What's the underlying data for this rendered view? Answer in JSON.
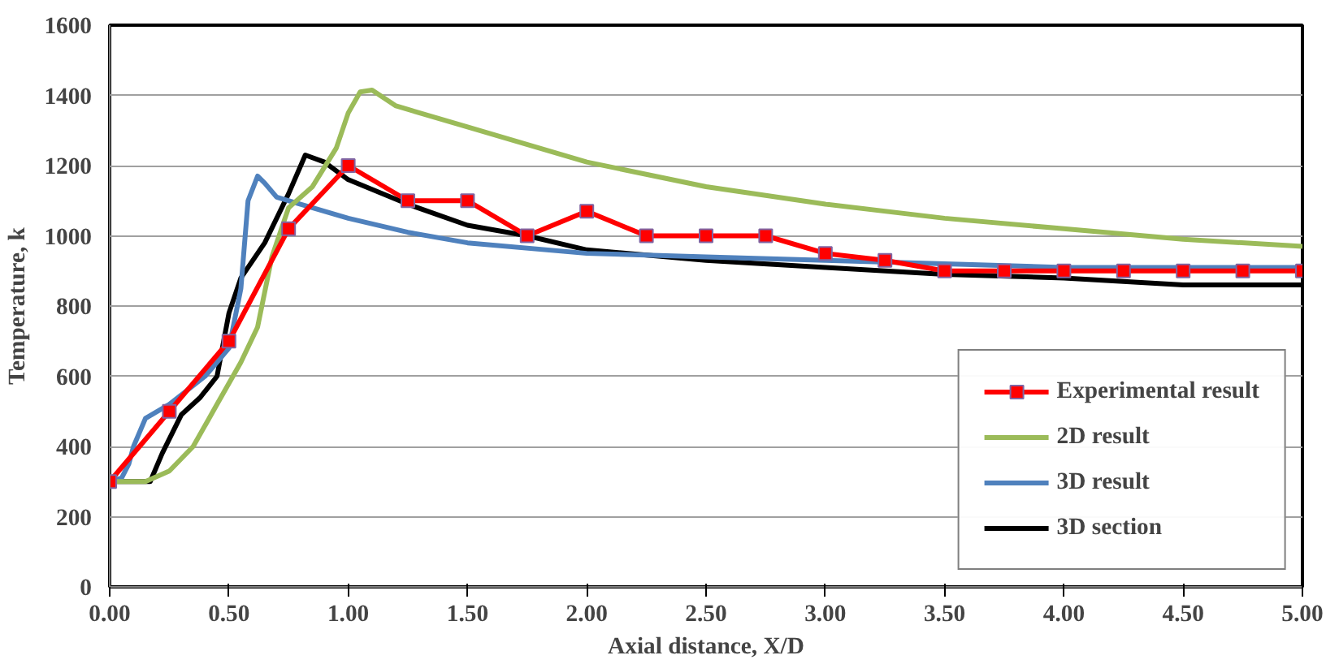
{
  "chart_data": {
    "type": "line",
    "xlabel": "Axial distance, X/D",
    "ylabel": "Temperature, k",
    "xlim": [
      0,
      5
    ],
    "ylim": [
      0,
      1600
    ],
    "xticks": [
      {
        "value": 0,
        "label": "0.00"
      },
      {
        "value": 0.5,
        "label": "0.50"
      },
      {
        "value": 1,
        "label": "1.00"
      },
      {
        "value": 1.5,
        "label": "1.50"
      },
      {
        "value": 2,
        "label": "2.00"
      },
      {
        "value": 2.5,
        "label": "2.50"
      },
      {
        "value": 3,
        "label": "3.00"
      },
      {
        "value": 3.5,
        "label": "3.50"
      },
      {
        "value": 4,
        "label": "4.00"
      },
      {
        "value": 4.5,
        "label": "4.50"
      },
      {
        "value": 5,
        "label": "5.00"
      }
    ],
    "yticks": [
      0,
      200,
      400,
      600,
      800,
      1000,
      1200,
      1400,
      1600
    ],
    "grid": "y",
    "legend": "bottom right",
    "series": [
      {
        "name": "Experimental result",
        "color": "#ff0000",
        "marker": "square",
        "x": [
          0,
          0.25,
          0.5,
          0.75,
          1,
          1.25,
          1.5,
          1.75,
          2,
          2.25,
          2.5,
          2.75,
          3,
          3.25,
          3.5,
          3.75,
          4,
          4.25,
          4.5,
          4.75,
          5
        ],
        "values": [
          300,
          500,
          700,
          1020,
          1200,
          1100,
          1100,
          1000,
          1070,
          1000,
          1000,
          1000,
          950,
          930,
          900,
          900,
          900,
          900,
          900,
          900,
          900
        ]
      },
      {
        "name": "2D result",
        "color": "#9bbb59",
        "marker": "none",
        "x": [
          0,
          0.15,
          0.25,
          0.35,
          0.45,
          0.55,
          0.62,
          0.68,
          0.75,
          0.85,
          0.95,
          1,
          1.05,
          1.1,
          1.2,
          1.5,
          2,
          2.5,
          3,
          3.5,
          4,
          4.5,
          5
        ],
        "values": [
          300,
          300,
          330,
          400,
          520,
          640,
          740,
          940,
          1080,
          1140,
          1250,
          1350,
          1410,
          1415,
          1370,
          1310,
          1210,
          1140,
          1090,
          1050,
          1020,
          990,
          970
        ]
      },
      {
        "name": "3D result",
        "color": "#4f81bd",
        "marker": "none",
        "x": [
          0,
          0.05,
          0.08,
          0.1,
          0.15,
          0.25,
          0.4,
          0.5,
          0.55,
          0.58,
          0.62,
          0.65,
          0.7,
          0.8,
          1,
          1.25,
          1.5,
          2,
          2.5,
          3,
          3.5,
          4,
          4.5,
          5
        ],
        "values": [
          300,
          310,
          350,
          400,
          480,
          520,
          600,
          680,
          850,
          1100,
          1170,
          1150,
          1110,
          1090,
          1050,
          1010,
          980,
          950,
          940,
          930,
          920,
          910,
          910,
          910
        ]
      },
      {
        "name": "3D section",
        "color": "#000000",
        "marker": "none",
        "x": [
          0,
          0.17,
          0.22,
          0.3,
          0.38,
          0.45,
          0.5,
          0.55,
          0.65,
          0.75,
          0.82,
          0.9,
          1,
          1.25,
          1.5,
          1.75,
          2,
          2.5,
          3,
          3.5,
          4,
          4.5,
          5
        ],
        "values": [
          300,
          300,
          380,
          490,
          540,
          600,
          780,
          880,
          980,
          1120,
          1230,
          1210,
          1160,
          1090,
          1030,
          1000,
          960,
          930,
          910,
          890,
          880,
          860,
          860
        ]
      }
    ]
  }
}
